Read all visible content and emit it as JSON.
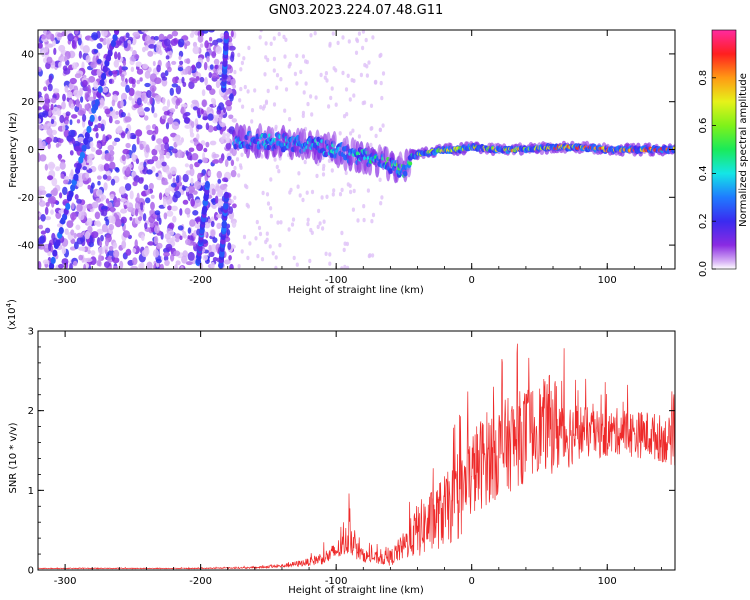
{
  "title": "GN03.2023.224.07.48.G11",
  "colors": {
    "snr_line": "#ee2a2a",
    "signal_core": "#14e6e6",
    "scatter": "#7a1fe0",
    "background": "#ffffff"
  },
  "chart_data": [
    {
      "type": "heatmap",
      "title": "",
      "xlabel": "Height of straight line (km)",
      "ylabel": "Frequency (Hz)",
      "xlim": [
        -320,
        150
      ],
      "ylim": [
        -50,
        50
      ],
      "x_ticks": [
        -300,
        -200,
        -100,
        0,
        100
      ],
      "x_tick_labels": [
        "-300",
        "-200",
        "-100",
        "0",
        "100"
      ],
      "y_ticks": [
        -40,
        -20,
        0,
        20,
        40
      ],
      "y_tick_labels": [
        "-40",
        "-20",
        "0",
        "20",
        "40"
      ],
      "colorbar": {
        "label": "Normalized spectral amplitude",
        "range": [
          0.0,
          1.0
        ],
        "ticks": [
          0.0,
          0.2,
          0.4,
          0.6,
          0.8
        ],
        "tick_labels": [
          "0.0",
          "0.2",
          "0.4",
          "0.6",
          "0.8"
        ],
        "colormap": "rainbow (white-violet-blue-cyan-green-yellow-red-magenta)"
      },
      "signal_track": {
        "x": [
          -175,
          -160,
          -140,
          -120,
          -100,
          -90,
          -80,
          -70,
          -60,
          -50,
          -45,
          -40,
          -30,
          -20,
          -10,
          0,
          20,
          40,
          60,
          80,
          100,
          120,
          150
        ],
        "frequency": [
          4,
          4,
          3,
          2,
          0,
          -2,
          -3,
          -4,
          -6,
          -9,
          -3,
          -2,
          -1,
          0,
          0,
          1,
          0,
          0,
          1,
          1,
          0,
          0,
          0
        ],
        "peak_amplitude": [
          0.45,
          0.45,
          0.4,
          0.4,
          0.42,
          0.45,
          0.45,
          0.5,
          0.55,
          0.6,
          0.6,
          0.7,
          0.7,
          0.72,
          0.72,
          0.75,
          0.78,
          0.8,
          0.85,
          0.9,
          0.92,
          0.9,
          0.9
        ]
      },
      "streaks": [
        {
          "x_start": -310,
          "f_start": -48,
          "x_end": -262,
          "f_end": 50
        },
        {
          "x_start": -202,
          "f_start": -48,
          "x_end": -195,
          "f_end": -15
        },
        {
          "x_start": -185,
          "f_start": -48,
          "x_end": -181,
          "f_end": -20
        },
        {
          "x_start": -183,
          "f_start": 25,
          "x_end": -181,
          "f_end": 48
        }
      ],
      "noise_region_x": [
        -320,
        -175
      ]
    },
    {
      "type": "line",
      "title": "",
      "xlabel": "Height of straight line (km)",
      "ylabel": "SNR (10 * v/v)",
      "y_scale_label": "(x10",
      "y_scale_exponent": "4",
      "y_scale_close": ")",
      "xlim": [
        -320,
        150
      ],
      "ylim": [
        0,
        3.0
      ],
      "x_ticks": [
        -300,
        -200,
        -100,
        0,
        100
      ],
      "x_tick_labels": [
        "-300",
        "-200",
        "-100",
        "0",
        "100"
      ],
      "y_ticks": [
        0,
        1,
        2,
        3
      ],
      "y_tick_labels": [
        "0",
        "1",
        "2",
        "3"
      ],
      "series": [
        {
          "color": "#ee2a2a",
          "x": [
            -320,
            -300,
            -250,
            -200,
            -160,
            -140,
            -120,
            -105,
            -95,
            -90,
            -85,
            -80,
            -70,
            -60,
            -50,
            -45,
            -40,
            -30,
            -20,
            -10,
            0,
            10,
            20,
            30,
            40,
            50,
            60,
            65,
            70,
            80,
            90,
            100,
            110,
            120,
            130,
            140,
            150
          ],
          "y": [
            0.02,
            0.02,
            0.02,
            0.02,
            0.03,
            0.05,
            0.1,
            0.18,
            0.3,
            0.45,
            0.25,
            0.18,
            0.15,
            0.15,
            0.3,
            0.4,
            0.5,
            0.6,
            0.75,
            0.85,
            1.2,
            1.4,
            1.5,
            1.6,
            1.7,
            1.8,
            1.85,
            1.75,
            1.7,
            1.75,
            1.7,
            1.7,
            1.75,
            1.7,
            1.7,
            1.65,
            1.6
          ],
          "noise_amplitude": [
            0.005,
            0.005,
            0.005,
            0.005,
            0.01,
            0.02,
            0.05,
            0.1,
            0.15,
            0.25,
            0.12,
            0.08,
            0.08,
            0.1,
            0.18,
            0.25,
            0.35,
            0.4,
            0.45,
            0.5,
            0.55,
            0.6,
            0.6,
            0.6,
            0.6,
            0.55,
            0.65,
            0.55,
            0.45,
            0.35,
            0.3,
            0.3,
            0.3,
            0.3,
            0.3,
            0.3,
            0.3
          ]
        }
      ]
    }
  ]
}
